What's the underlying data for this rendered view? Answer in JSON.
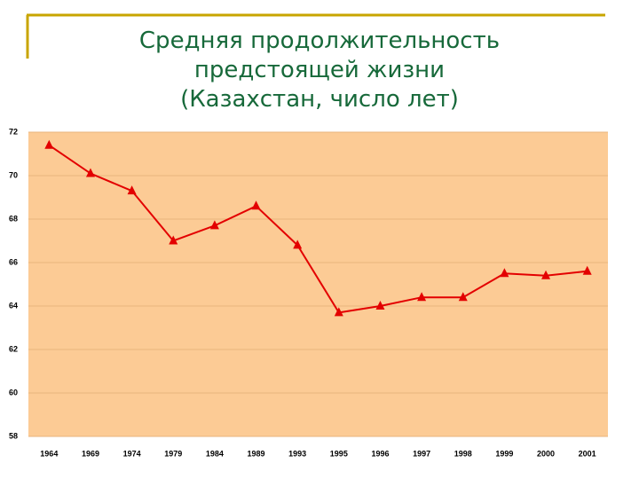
{
  "chart_data": {
    "type": "line",
    "title": [
      "Средняя продолжительность",
      "предстоящей жизни",
      "(Казахстан, число лет)"
    ],
    "categories": [
      "1964",
      "1969",
      "1974",
      "1979",
      "1984",
      "1989",
      "1993",
      "1995",
      "1996",
      "1997",
      "1998",
      "1999",
      "2000",
      "2001"
    ],
    "series": [
      {
        "color": "#e30000",
        "values": [
          71.4,
          70.1,
          69.3,
          67.0,
          67.7,
          68.6,
          66.8,
          63.7,
          64.0,
          64.4,
          64.4,
          65.5,
          65.4,
          65.6
        ]
      }
    ],
    "ylim": [
      58,
      72
    ],
    "yticks": [
      58,
      60,
      62,
      64,
      66,
      68,
      70,
      72
    ],
    "grid": true,
    "plot_background": "#fccb95"
  }
}
